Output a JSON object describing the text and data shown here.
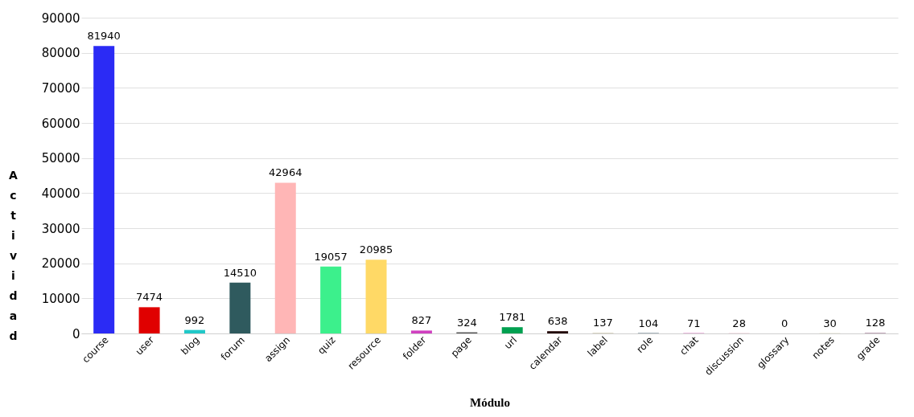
{
  "chart_data": {
    "type": "bar",
    "xlabel": "Módulo",
    "ylabel": "Actividad",
    "categories": [
      "course",
      "user",
      "blog",
      "forum",
      "assign",
      "quiz",
      "resource",
      "folder",
      "page",
      "url",
      "calendar",
      "label",
      "role",
      "chat",
      "discussion",
      "glossary",
      "notes",
      "grade"
    ],
    "values": [
      81940,
      7474,
      992,
      14510,
      42964,
      19057,
      20985,
      827,
      324,
      1781,
      638,
      137,
      104,
      71,
      28,
      0,
      30,
      128
    ],
    "colors": [
      "#2b2bf5",
      "#e00000",
      "#20c8c8",
      "#2f5a5e",
      "#ffb6b6",
      "#3cf08c",
      "#ffd966",
      "#d040c0",
      "#505050",
      "#00a050",
      "#200000",
      "#c8c0a0",
      "#406070",
      "#c0209a",
      "#c02050",
      "#a04010",
      "#a09840",
      "#906080"
    ],
    "ylim": [
      0,
      90000
    ],
    "yticks": [
      0,
      10000,
      20000,
      30000,
      40000,
      50000,
      60000,
      70000,
      80000,
      90000
    ],
    "grid": "y",
    "data_labels": true
  }
}
